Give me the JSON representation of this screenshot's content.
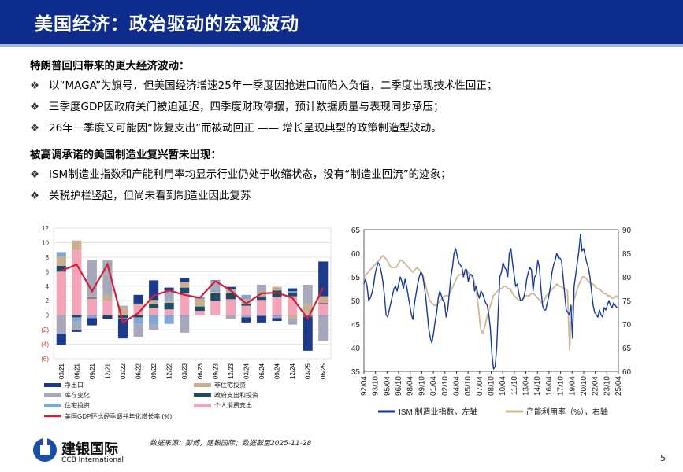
{
  "header": {
    "title": "美国经济：政治驱动的宏观波动"
  },
  "sections": [
    {
      "heading": "特朗普回归带来的更大经济波动：",
      "bullets": [
        "以“MAGA”为旗号，但美国经济增速25年一季度因抢进口而陷入负值，二季度出现技术性回正；",
        "三季度GDP因政府关门被迫延迟，四季度财政停摆，预计数据质量与表现同步承压；",
        "26年一季度又可能因“恢复支出”而被动回正 —— 增长呈现典型的政策制造型波动。"
      ]
    },
    {
      "heading": "被高调承诺的美国制造业复兴暂未出现：",
      "bullets": [
        "ISM制造业指数和产能利用率均显示行业仍处于收缩状态，没有“制造业回流”的迹象；",
        "关税护栏竖起，但尚未看到制造业因此复苏"
      ]
    }
  ],
  "bullet_marker": "❖",
  "source": "数据来源：彭博，建银国际；数据截至2025-11-28",
  "logo": {
    "name": "建银国际",
    "sub": "CCB International"
  },
  "page_number": "5",
  "chart_data": [
    {
      "type": "bar",
      "stacked": true,
      "categories": [
        "03/21",
        "06/21",
        "09/21",
        "12/21",
        "03/22",
        "06/22",
        "09/22",
        "12/22",
        "03/23",
        "06/23",
        "09/23",
        "12/23",
        "03/24",
        "06/24",
        "09/24",
        "12/24",
        "03/25",
        "06/25"
      ],
      "ylim": [
        -6,
        12
      ],
      "yticks": [
        "(6)",
        "(4)",
        "(2)",
        "0",
        "2",
        "4",
        "6",
        "8",
        "10",
        "12"
      ],
      "grid": true,
      "legend_position": "bottom",
      "series": [
        {
          "name": "个人消费支出",
          "color": "#f4a4b8",
          "values": [
            6.0,
            9.0,
            2.3,
            2.0,
            0.1,
            1.4,
            1.0,
            0.8,
            3.0,
            0.6,
            2.0,
            2.2,
            1.3,
            2.1,
            2.5,
            2.6,
            0.3,
            1.7
          ]
        },
        {
          "name": "政府支出和投资",
          "color": "#1a4e66",
          "values": [
            0.8,
            -0.3,
            0.1,
            -0.2,
            -0.4,
            -0.3,
            0.5,
            0.9,
            0.8,
            0.6,
            1.0,
            0.8,
            0.3,
            0.5,
            0.9,
            0.5,
            -0.1,
            0.0
          ]
        },
        {
          "name": "非住宅投资",
          "color": "#c9ae8e",
          "values": [
            1.3,
            1.3,
            0.2,
            0.8,
            1.0,
            0.2,
            0.6,
            0.2,
            0.8,
            1.0,
            0.2,
            0.5,
            0.6,
            0.5,
            0.5,
            -0.4,
            1.3,
            0.9
          ]
        },
        {
          "name": "住宅投资",
          "color": "#7ea6d8",
          "values": [
            0.6,
            -0.5,
            -0.4,
            0.1,
            -0.1,
            -0.9,
            -1.3,
            -1.2,
            -0.2,
            0.2,
            0.3,
            0.1,
            0.6,
            -0.1,
            -0.2,
            0.2,
            -0.1,
            -0.2
          ]
        },
        {
          "name": "库存变化",
          "color": "#a6a9bb",
          "values": [
            -2.6,
            -1.3,
            5.0,
            4.7,
            0.2,
            -1.8,
            -0.7,
            1.5,
            -2.2,
            0.0,
            1.3,
            -0.5,
            -0.3,
            1.1,
            -0.2,
            -0.9,
            2.6,
            -3.3
          ]
        },
        {
          "name": "净出口",
          "color": "#1b3a8c",
          "values": [
            -1.5,
            -0.2,
            -1.0,
            -0.3,
            -2.7,
            1.2,
            2.7,
            0.4,
            0.5,
            0.0,
            0.0,
            0.3,
            -0.7,
            -0.9,
            -0.4,
            0.4,
            -4.7,
            4.8
          ]
        }
      ],
      "line": {
        "name": "美国GDP环比经季调并年化增长率 (%)",
        "color": "#d21f3c",
        "values": [
          6.1,
          7.0,
          3.3,
          7.0,
          -1.0,
          0.3,
          2.7,
          3.4,
          2.8,
          2.4,
          4.7,
          3.4,
          1.6,
          3.0,
          3.1,
          2.4,
          -0.5,
          3.8
        ]
      }
    },
    {
      "type": "line",
      "x_start": "1992-04",
      "x_step_months": 3,
      "xticks": [
        "92/04",
        "93/10",
        "95/04",
        "96/10",
        "98/04",
        "99/10",
        "01/04",
        "02/10",
        "04/04",
        "05/10",
        "07/04",
        "08/10",
        "10/04",
        "11/10",
        "13/04",
        "14/10",
        "16/04",
        "17/10",
        "19/04",
        "20/10",
        "22/04",
        "23/10",
        "25/04"
      ],
      "ylim_left": [
        35,
        65
      ],
      "yticks_left": [
        "35",
        "40",
        "45",
        "50",
        "55",
        "60",
        "65"
      ],
      "ylim_right": [
        60,
        90
      ],
      "yticks_right": [
        "60",
        "65",
        "70",
        "75",
        "80",
        "85",
        "90"
      ],
      "series": [
        {
          "name": "ISM 制造业指数，左轴",
          "axis": "left",
          "color": "#16399a",
          "values": [
            53.5,
            54.5,
            53,
            50,
            50.5,
            51.5,
            53,
            55.5,
            57,
            58,
            57.5,
            56,
            54,
            51,
            47,
            46.5,
            48,
            49.5,
            51,
            52.5,
            53,
            52,
            53.5,
            55,
            54,
            52.5,
            54.5,
            53,
            51,
            49,
            47,
            46,
            49.5,
            51.5,
            53.5,
            55,
            56,
            55.5,
            53.5,
            51,
            47.5,
            44,
            42,
            41,
            43,
            45.5,
            47.5,
            50.5,
            52,
            51,
            50,
            49.5,
            46.5,
            48,
            51.5,
            55,
            57,
            60,
            61,
            59.5,
            58,
            57.5,
            57,
            55,
            56.5,
            56.5,
            54,
            55.5,
            55.5,
            55,
            52,
            53,
            51.5,
            50.5,
            52,
            51.5,
            50.5,
            49.5,
            49,
            47,
            44,
            38.5,
            35.5,
            36,
            40,
            48,
            55,
            56,
            58,
            57,
            56.5,
            55,
            60,
            61,
            58,
            55.5,
            53,
            53.5,
            51.5,
            50,
            50,
            50.5,
            52,
            54.5,
            56,
            57,
            56.5,
            52,
            55,
            55.5,
            58.5,
            57,
            52.5,
            49,
            48,
            48,
            49.5,
            51,
            53,
            56,
            57.5,
            58.5,
            60,
            59,
            59,
            58.5,
            55,
            51.5,
            48,
            47.5,
            47,
            49,
            42,
            53,
            55.5,
            58,
            60.5,
            64,
            60.5,
            61,
            59.5,
            58,
            57,
            55,
            52,
            49,
            47.5,
            47,
            46.5,
            48,
            47,
            46.5,
            48.5,
            48,
            49,
            50,
            49,
            48.5,
            49.5,
            49,
            48.5,
            48.5
          ]
        },
        {
          "name": "产能利用率（%），右轴",
          "axis": "right",
          "color": "#cdb896",
          "values": [
            80,
            80.5,
            81,
            81.5,
            82,
            82.5,
            83,
            83.5,
            84,
            84.5,
            84,
            83.5,
            82.5,
            82,
            82,
            82,
            82.5,
            83.5,
            83.5,
            83,
            82.5,
            82,
            81.5,
            81,
            81.5,
            82,
            81.5,
            81,
            80,
            78.5,
            76.5,
            75,
            74.5,
            74,
            74,
            74.5,
            75,
            75.5,
            76,
            76,
            76,
            77,
            78,
            79,
            80,
            80.5,
            80.5,
            80.5,
            80.5,
            81,
            80.5,
            80,
            79,
            77,
            73.5,
            69,
            68,
            69.5,
            71.5,
            73,
            74.5,
            76,
            76.5,
            77,
            77.5,
            77.5,
            78,
            78,
            77.5,
            77.5,
            76.5,
            76,
            75.5,
            75,
            75,
            75.5,
            76,
            76,
            76,
            76.5,
            76.5,
            76,
            75.5,
            75,
            74.5,
            75,
            76,
            76.5,
            77,
            77.5,
            78,
            78.5,
            78,
            78,
            77.5,
            77.5,
            77,
            64.5,
            73,
            75,
            76.5,
            78,
            79,
            80,
            80,
            79.5,
            79,
            78.5,
            78.5,
            78,
            77.5,
            77.5,
            77,
            76.5,
            76.5,
            76,
            76,
            75.5,
            75.5,
            76,
            75.5
          ]
        }
      ],
      "legend_position": "bottom"
    }
  ]
}
